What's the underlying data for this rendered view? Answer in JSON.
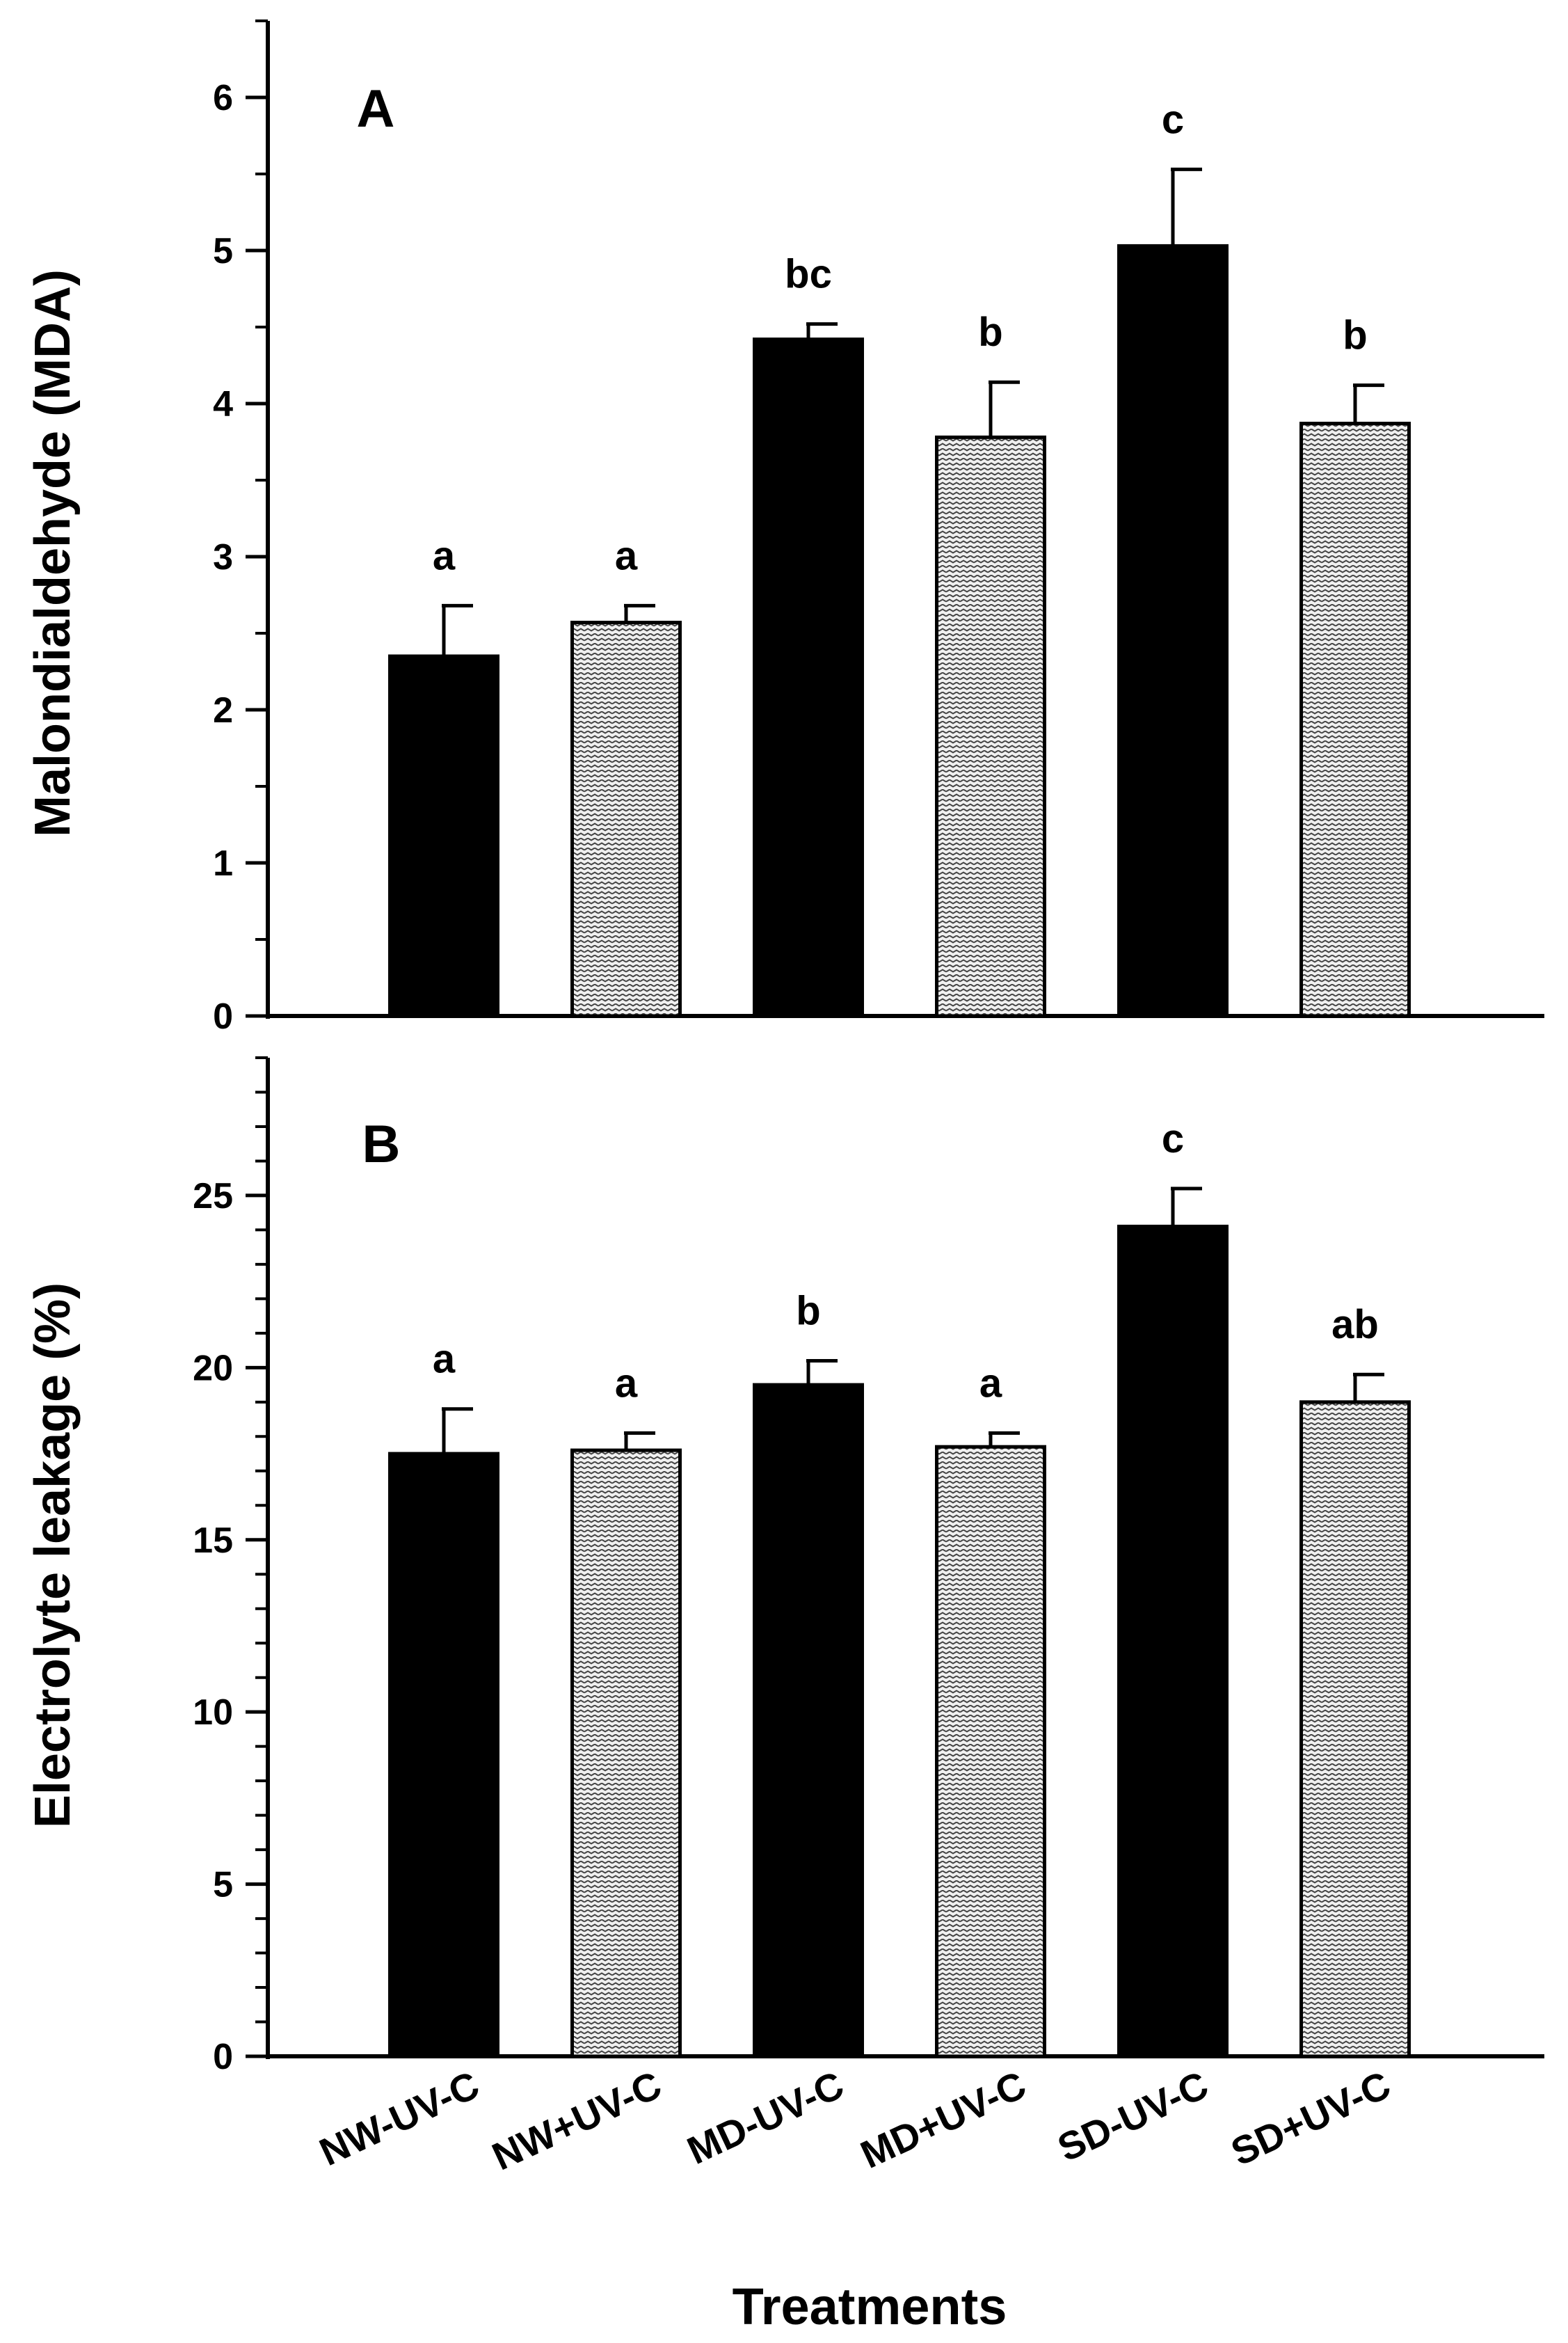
{
  "chart_data": [
    {
      "type": "bar",
      "panel_label": "A",
      "title": "",
      "xlabel": "",
      "ylabel": "Malondialdehyde (MDA)",
      "ylim": [
        0,
        6.5
      ],
      "yticks": [
        0,
        1,
        2,
        3,
        4,
        5,
        6
      ],
      "categories": [
        "NW-UV-C",
        "NW+UV-C",
        "MD-UV-C",
        "MD+UV-C",
        "SD-UV-C",
        "SD+UV-C"
      ],
      "values": [
        2.35,
        2.57,
        4.42,
        3.78,
        5.03,
        3.87
      ],
      "errors": [
        0.33,
        0.11,
        0.1,
        0.36,
        0.5,
        0.25
      ],
      "significance": [
        "a",
        "a",
        "bc",
        "b",
        "c",
        "b"
      ],
      "fills": [
        "solid",
        "pattern",
        "solid",
        "pattern",
        "solid",
        "pattern"
      ]
    },
    {
      "type": "bar",
      "panel_label": "B",
      "title": "",
      "xlabel": "Treatments",
      "ylabel": "Electrolyte leakage (%)",
      "ylim": [
        0,
        29
      ],
      "yticks": [
        0,
        5,
        10,
        15,
        20,
        25
      ],
      "categories": [
        "NW-UV-C",
        "NW+UV-C",
        "MD-UV-C",
        "MD+UV-C",
        "SD-UV-C",
        "SD+UV-C"
      ],
      "values": [
        17.5,
        17.6,
        19.5,
        17.7,
        24.1,
        19.0
      ],
      "errors": [
        1.3,
        0.5,
        0.7,
        0.4,
        1.1,
        0.8
      ],
      "significance": [
        "a",
        "a",
        "b",
        "a",
        "c",
        "ab"
      ],
      "fills": [
        "solid",
        "pattern",
        "solid",
        "pattern",
        "solid",
        "pattern"
      ]
    }
  ],
  "colors": {
    "solid": "#000000",
    "pattern_stroke": "#333333",
    "pattern_bg": "#f0f0f0"
  }
}
